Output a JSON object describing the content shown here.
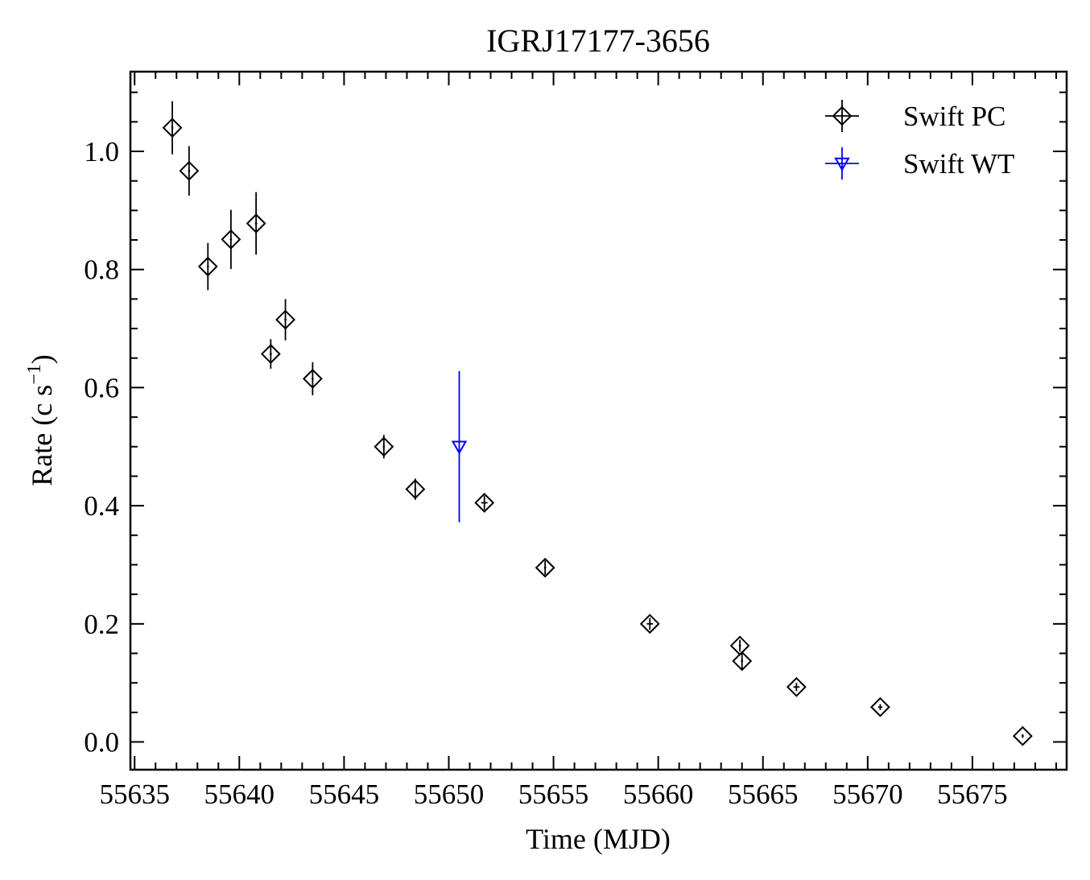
{
  "chart_data": {
    "type": "scatter",
    "title": "IGRJ17177-3656",
    "xlabel": "Time (MJD)",
    "ylabel": {
      "main": "Rate (c s",
      "sup": "−1",
      "close": ")"
    },
    "xlim": [
      55634.8,
      55679.5
    ],
    "ylim": [
      -0.047,
      1.135
    ],
    "x_ticks": [
      55635,
      55640,
      55645,
      55650,
      55655,
      55660,
      55665,
      55670,
      55675
    ],
    "y_ticks": [
      0.0,
      0.2,
      0.4,
      0.6,
      0.8,
      1.0
    ],
    "y_tick_labels": [
      "0.0",
      "0.2",
      "0.4",
      "0.6",
      "0.8",
      "1.0"
    ],
    "x_minor_step": 1,
    "y_minor_step": 0.05,
    "grid": false,
    "legend_position": "top-right",
    "series": [
      {
        "name": "Swift PC",
        "marker": "diamond",
        "color": "#000000",
        "points": [
          {
            "x": 55636.8,
            "y": 1.04,
            "yerr": 0.045,
            "xerr": 0.05
          },
          {
            "x": 55637.6,
            "y": 0.967,
            "yerr": 0.042,
            "xerr": 0.05
          },
          {
            "x": 55638.5,
            "y": 0.805,
            "yerr": 0.04,
            "xerr": 0.05
          },
          {
            "x": 55639.6,
            "y": 0.851,
            "yerr": 0.05,
            "xerr": 0.05
          },
          {
            "x": 55640.8,
            "y": 0.878,
            "yerr": 0.053,
            "xerr": 0.05
          },
          {
            "x": 55641.5,
            "y": 0.657,
            "yerr": 0.025,
            "xerr": 0.05
          },
          {
            "x": 55642.2,
            "y": 0.715,
            "yerr": 0.035,
            "xerr": 0.05
          },
          {
            "x": 55643.5,
            "y": 0.615,
            "yerr": 0.028,
            "xerr": 0.05
          },
          {
            "x": 55646.9,
            "y": 0.5,
            "yerr": 0.02,
            "xerr": 0.05
          },
          {
            "x": 55648.4,
            "y": 0.428,
            "yerr": 0.018,
            "xerr": 0.05
          },
          {
            "x": 55651.7,
            "y": 0.405,
            "yerr": 0.012,
            "xerr": 0.15
          },
          {
            "x": 55654.6,
            "y": 0.295,
            "yerr": 0.012,
            "xerr": 0.05
          },
          {
            "x": 55659.6,
            "y": 0.2,
            "yerr": 0.01,
            "xerr": 0.15
          },
          {
            "x": 55663.9,
            "y": 0.163,
            "yerr": 0.01,
            "xerr": 0.05
          },
          {
            "x": 55664.0,
            "y": 0.137,
            "yerr": 0.015,
            "xerr": 0.05
          },
          {
            "x": 55666.6,
            "y": 0.093,
            "yerr": 0.007,
            "xerr": 0.15
          },
          {
            "x": 55670.6,
            "y": 0.059,
            "yerr": 0.005,
            "xerr": 0.1
          },
          {
            "x": 55677.4,
            "y": 0.01,
            "yerr": 0.003,
            "xerr": 0.05
          }
        ]
      },
      {
        "name": "Swift WT",
        "marker": "triangle-down",
        "color": "#0000ff",
        "points": [
          {
            "x": 55650.5,
            "y": 0.5,
            "yerr": 0.128,
            "xerr": 0.02
          }
        ]
      }
    ]
  }
}
